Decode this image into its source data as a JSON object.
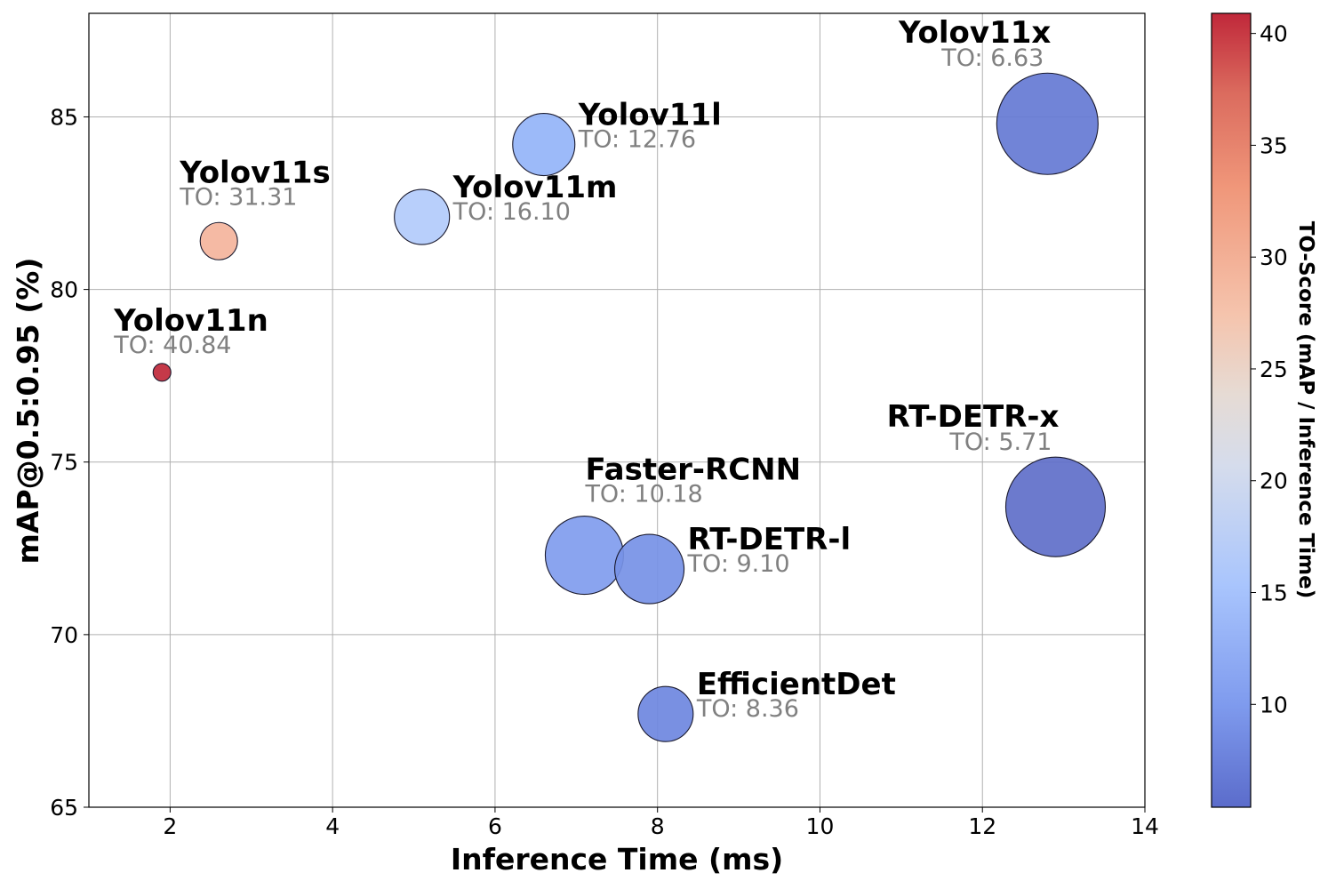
{
  "chart_data": {
    "type": "scatter",
    "subtype": "bubble",
    "title": "",
    "xlabel": "Inference Time (ms)",
    "ylabel": "mAP@0.5:0.95 (%)",
    "xlim": [
      1,
      14
    ],
    "ylim": [
      65,
      88
    ],
    "xticks": [
      2,
      4,
      6,
      8,
      10,
      12,
      14
    ],
    "yticks": [
      65,
      70,
      75,
      80,
      85
    ],
    "grid": true,
    "colormap": "coolwarm",
    "colorbar": {
      "label": "TO-Score (mAP / Inference Time)",
      "range": [
        5.4,
        40.9
      ],
      "ticks": [
        10,
        15,
        20,
        25,
        30,
        35,
        40
      ]
    },
    "score_prefix": "TO: ",
    "points": [
      {
        "name": "Yolov11n",
        "x": 1.9,
        "y": 77.6,
        "to_score": "40.84",
        "size": 10,
        "label_pos": "above-left",
        "color": "#c0283a"
      },
      {
        "name": "Yolov11s",
        "x": 2.6,
        "y": 81.4,
        "to_score": "31.31",
        "size": 21,
        "label_pos": "above-left",
        "color": "#f4b49c"
      },
      {
        "name": "Yolov11m",
        "x": 5.1,
        "y": 82.1,
        "to_score": "16.10",
        "size": 31,
        "label_pos": "right",
        "color": "#b2cbfb"
      },
      {
        "name": "Yolov11l",
        "x": 6.6,
        "y": 84.2,
        "to_score": "12.76",
        "size": 35,
        "label_pos": "right",
        "color": "#94b4f8"
      },
      {
        "name": "Yolov11x",
        "x": 12.8,
        "y": 84.8,
        "to_score": "6.63",
        "size": 57,
        "label_pos": "above-left",
        "color": "#6579d4"
      },
      {
        "name": "Faster-RCNN",
        "x": 7.1,
        "y": 72.3,
        "to_score": "10.18",
        "size": 44,
        "label_pos": "above",
        "color": "#809cee"
      },
      {
        "name": "RT-DETR-l",
        "x": 7.9,
        "y": 71.9,
        "to_score": "9.10",
        "size": 39,
        "label_pos": "right",
        "color": "#7691e6"
      },
      {
        "name": "RT-DETR-x",
        "x": 12.9,
        "y": 73.7,
        "to_score": "5.71",
        "size": 56,
        "label_pos": "above-left",
        "color": "#5f6fc9"
      },
      {
        "name": "EfficientDet",
        "x": 8.1,
        "y": 67.7,
        "to_score": "8.36",
        "size": 31,
        "label_pos": "right",
        "color": "#6e87e0"
      }
    ]
  }
}
